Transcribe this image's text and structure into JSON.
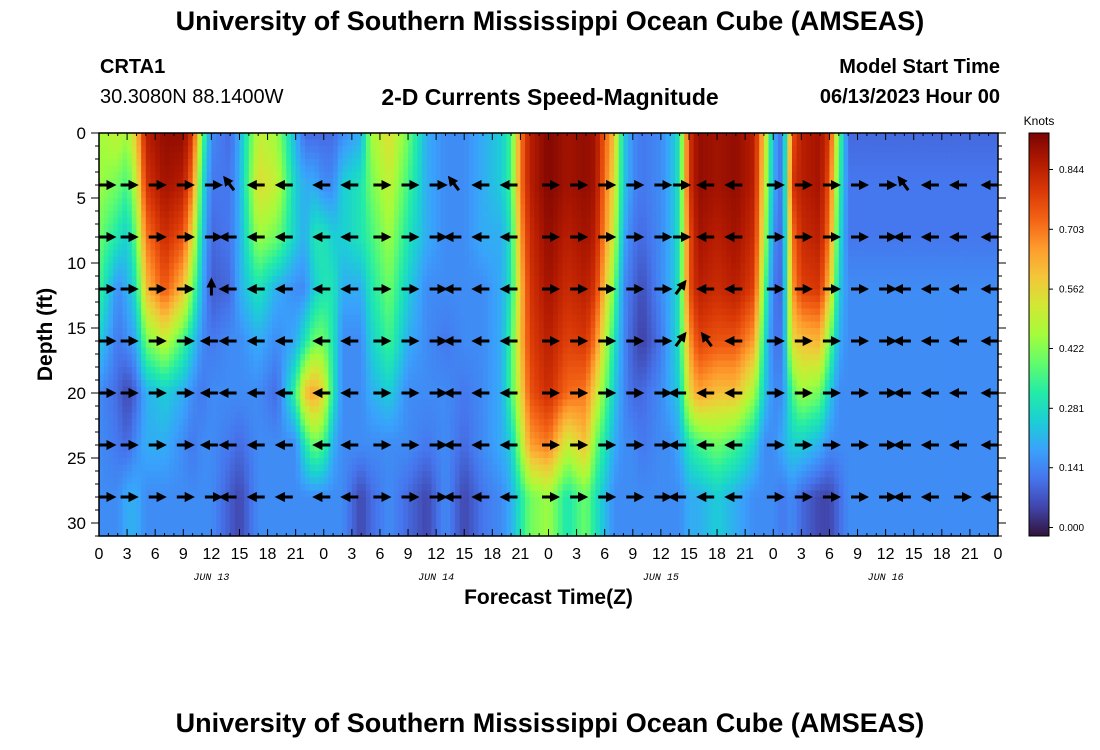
{
  "header": {
    "title": "University of Southern Mississippi Ocean Cube (AMSEAS)",
    "station_id": "CRTA1",
    "coordinates": "30.3080N  88.1400W",
    "chart_title": "2-D Currents Speed-Magnitude",
    "model_start_label": "Model Start Time",
    "model_start_value": "06/13/2023 Hour 00"
  },
  "footer": {
    "title": "University of Southern Mississippi Ocean Cube (AMSEAS)"
  },
  "colors": {
    "colormap": [
      "#30123b",
      "#4145ab",
      "#4675ed",
      "#39a2fc",
      "#1bcfd4",
      "#24eca6",
      "#61fc6c",
      "#a4fc3b",
      "#d1e834",
      "#f3c63a",
      "#fe9b2d",
      "#f36315",
      "#d93806",
      "#b11901",
      "#7a0402"
    ]
  },
  "chart_data": {
    "type": "heatmap",
    "title": "2-D Currents Speed-Magnitude",
    "xlabel": "Forecast Time(Z)",
    "ylabel": "Depth (ft)",
    "colorbar_label": "Knots",
    "xlim": [
      0,
      96
    ],
    "ylim": [
      31,
      0
    ],
    "x_tick_labels": [
      "0",
      "3",
      "6",
      "9",
      "12",
      "15",
      "18",
      "21",
      "0",
      "3",
      "6",
      "9",
      "12",
      "15",
      "18",
      "21",
      "0",
      "3",
      "6",
      "9",
      "12",
      "15",
      "18",
      "21",
      "0",
      "3",
      "6",
      "9",
      "12",
      "15",
      "18",
      "21",
      "0"
    ],
    "y_ticks": [
      0,
      5,
      10,
      15,
      20,
      25,
      30
    ],
    "day_labels": [
      {
        "text": "JUN 13",
        "hour": 12
      },
      {
        "text": "JUN 14",
        "hour": 36
      },
      {
        "text": "JUN 15",
        "hour": 60
      },
      {
        "text": "JUN 16",
        "hour": 84
      }
    ],
    "colorbar_ticks": [
      "0.000",
      "0.141",
      "0.281",
      "0.422",
      "0.562",
      "0.703",
      "0.844"
    ],
    "colorbar_range": [
      -0.02,
      0.93
    ],
    "depths": [
      0,
      4,
      8,
      12,
      16,
      20,
      24,
      28
    ],
    "speed_profiles": [
      {
        "hour": 0,
        "speeds": [
          0.45,
          0.45,
          0.4,
          0.35,
          0.25,
          0.15,
          0.15,
          0.15
        ]
      },
      {
        "hour": 2,
        "speeds": [
          0.5,
          0.4,
          0.3,
          0.15,
          0.12,
          0.1,
          0.12,
          0.15
        ]
      },
      {
        "hour": 3,
        "speeds": [
          0.45,
          0.35,
          0.25,
          0.2,
          0.15,
          0.05,
          0.1,
          0.2
        ]
      },
      {
        "hour": 4,
        "speeds": [
          0.6,
          0.5,
          0.4,
          0.3,
          0.2,
          0.1,
          0.15,
          0.2
        ]
      },
      {
        "hour": 5,
        "speeds": [
          0.85,
          0.8,
          0.7,
          0.6,
          0.4,
          0.2,
          0.2,
          0.15
        ]
      },
      {
        "hour": 7,
        "speeds": [
          0.9,
          0.88,
          0.82,
          0.75,
          0.5,
          0.25,
          0.2,
          0.15
        ]
      },
      {
        "hour": 9,
        "speeds": [
          0.9,
          0.85,
          0.75,
          0.6,
          0.35,
          0.2,
          0.15,
          0.15
        ]
      },
      {
        "hour": 10,
        "speeds": [
          0.8,
          0.7,
          0.55,
          0.4,
          0.25,
          0.15,
          0.12,
          0.15
        ]
      },
      {
        "hour": 11,
        "speeds": [
          0.4,
          0.3,
          0.25,
          0.2,
          0.15,
          0.12,
          0.15,
          0.15
        ]
      },
      {
        "hour": 12,
        "speeds": [
          0.15,
          0.12,
          0.1,
          0.08,
          0.12,
          0.15,
          0.15,
          0.15
        ]
      },
      {
        "hour": 14,
        "speeds": [
          0.1,
          0.12,
          0.12,
          0.1,
          0.15,
          0.15,
          0.12,
          0.08
        ]
      },
      {
        "hour": 15,
        "speeds": [
          0.2,
          0.2,
          0.2,
          0.2,
          0.15,
          0.15,
          0.1,
          0.05
        ]
      },
      {
        "hour": 17,
        "speeds": [
          0.5,
          0.55,
          0.45,
          0.3,
          0.2,
          0.15,
          0.15,
          0.15
        ]
      },
      {
        "hour": 19,
        "speeds": [
          0.45,
          0.5,
          0.4,
          0.2,
          0.15,
          0.1,
          0.15,
          0.15
        ]
      },
      {
        "hour": 21,
        "speeds": [
          0.2,
          0.25,
          0.25,
          0.15,
          0.2,
          0.35,
          0.15,
          0.15
        ]
      },
      {
        "hour": 22,
        "speeds": [
          0.1,
          0.2,
          0.2,
          0.15,
          0.3,
          0.6,
          0.3,
          0.15
        ]
      },
      {
        "hour": 23,
        "speeds": [
          0.1,
          0.2,
          0.3,
          0.25,
          0.4,
          0.65,
          0.4,
          0.15
        ]
      },
      {
        "hour": 24,
        "speeds": [
          0.1,
          0.15,
          0.3,
          0.3,
          0.4,
          0.55,
          0.35,
          0.15
        ]
      },
      {
        "hour": 25,
        "speeds": [
          0.1,
          0.15,
          0.25,
          0.3,
          0.3,
          0.3,
          0.2,
          0.15
        ]
      },
      {
        "hour": 26,
        "speeds": [
          0.15,
          0.25,
          0.25,
          0.2,
          0.15,
          0.15,
          0.15,
          0.15
        ]
      },
      {
        "hour": 28,
        "speeds": [
          0.2,
          0.3,
          0.3,
          0.2,
          0.15,
          0.15,
          0.15,
          0.05
        ]
      },
      {
        "hour": 29,
        "speeds": [
          0.45,
          0.4,
          0.35,
          0.3,
          0.25,
          0.2,
          0.15,
          0.1
        ]
      },
      {
        "hour": 31,
        "speeds": [
          0.55,
          0.5,
          0.45,
          0.4,
          0.35,
          0.25,
          0.15,
          0.15
        ]
      },
      {
        "hour": 33,
        "speeds": [
          0.4,
          0.35,
          0.3,
          0.25,
          0.2,
          0.15,
          0.15,
          0.1
        ]
      },
      {
        "hour": 35,
        "speeds": [
          0.2,
          0.2,
          0.2,
          0.15,
          0.15,
          0.15,
          0.12,
          0.05
        ]
      },
      {
        "hour": 37,
        "speeds": [
          0.15,
          0.15,
          0.15,
          0.15,
          0.12,
          0.15,
          0.15,
          0.15
        ]
      },
      {
        "hour": 39,
        "speeds": [
          0.15,
          0.15,
          0.15,
          0.15,
          0.15,
          0.12,
          0.1,
          0.05
        ]
      },
      {
        "hour": 41,
        "speeds": [
          0.2,
          0.2,
          0.2,
          0.15,
          0.15,
          0.15,
          0.15,
          0.12
        ]
      },
      {
        "hour": 43,
        "speeds": [
          0.25,
          0.25,
          0.2,
          0.2,
          0.2,
          0.2,
          0.2,
          0.15
        ]
      },
      {
        "hour": 44,
        "speeds": [
          0.35,
          0.35,
          0.3,
          0.3,
          0.35,
          0.35,
          0.25,
          0.2
        ]
      },
      {
        "hour": 45,
        "speeds": [
          0.7,
          0.7,
          0.65,
          0.6,
          0.6,
          0.55,
          0.45,
          0.3
        ]
      },
      {
        "hour": 46,
        "speeds": [
          0.85,
          0.85,
          0.82,
          0.8,
          0.78,
          0.75,
          0.65,
          0.4
        ]
      },
      {
        "hour": 48,
        "speeds": [
          0.92,
          0.92,
          0.9,
          0.88,
          0.85,
          0.82,
          0.7,
          0.45
        ]
      },
      {
        "hour": 50,
        "speeds": [
          0.88,
          0.88,
          0.85,
          0.82,
          0.78,
          0.72,
          0.5,
          0.3
        ]
      },
      {
        "hour": 52,
        "speeds": [
          0.9,
          0.9,
          0.88,
          0.85,
          0.8,
          0.7,
          0.6,
          0.4
        ]
      },
      {
        "hour": 53,
        "speeds": [
          0.88,
          0.88,
          0.85,
          0.8,
          0.7,
          0.55,
          0.4,
          0.3
        ]
      },
      {
        "hour": 55,
        "speeds": [
          0.6,
          0.55,
          0.5,
          0.4,
          0.3,
          0.25,
          0.2,
          0.15
        ]
      },
      {
        "hour": 56,
        "speeds": [
          0.25,
          0.25,
          0.2,
          0.15,
          0.15,
          0.15,
          0.15,
          0.15
        ]
      },
      {
        "hour": 57,
        "speeds": [
          0.15,
          0.15,
          0.12,
          0.1,
          0.08,
          0.1,
          0.15,
          0.15
        ]
      },
      {
        "hour": 58,
        "speeds": [
          0.12,
          0.12,
          0.1,
          0.06,
          0.04,
          0.1,
          0.12,
          0.15
        ]
      },
      {
        "hour": 60,
        "speeds": [
          0.15,
          0.15,
          0.15,
          0.15,
          0.12,
          0.15,
          0.15,
          0.15
        ]
      },
      {
        "hour": 61,
        "speeds": [
          0.2,
          0.2,
          0.2,
          0.2,
          0.2,
          0.2,
          0.15,
          0.15
        ]
      },
      {
        "hour": 62,
        "speeds": [
          0.3,
          0.3,
          0.3,
          0.3,
          0.3,
          0.25,
          0.2,
          0.15
        ]
      },
      {
        "hour": 63,
        "speeds": [
          0.8,
          0.8,
          0.75,
          0.75,
          0.65,
          0.55,
          0.3,
          0.2
        ]
      },
      {
        "hour": 64,
        "speeds": [
          0.9,
          0.9,
          0.88,
          0.85,
          0.78,
          0.65,
          0.35,
          0.2
        ]
      },
      {
        "hour": 66,
        "speeds": [
          0.88,
          0.88,
          0.85,
          0.82,
          0.75,
          0.6,
          0.4,
          0.25
        ]
      },
      {
        "hour": 68,
        "speeds": [
          0.9,
          0.9,
          0.88,
          0.85,
          0.75,
          0.6,
          0.35,
          0.2
        ]
      },
      {
        "hour": 70,
        "speeds": [
          0.85,
          0.85,
          0.82,
          0.78,
          0.65,
          0.45,
          0.25,
          0.15
        ]
      },
      {
        "hour": 71,
        "speeds": [
          0.6,
          0.55,
          0.5,
          0.4,
          0.3,
          0.25,
          0.15,
          0.15
        ]
      },
      {
        "hour": 72,
        "speeds": [
          0.2,
          0.2,
          0.15,
          0.12,
          0.12,
          0.15,
          0.15,
          0.15
        ]
      },
      {
        "hour": 73,
        "speeds": [
          0.1,
          0.1,
          0.1,
          0.1,
          0.12,
          0.15,
          0.2,
          0.12
        ]
      },
      {
        "hour": 74,
        "speeds": [
          0.75,
          0.8,
          0.7,
          0.65,
          0.55,
          0.35,
          0.25,
          0.15
        ]
      },
      {
        "hour": 75,
        "speeds": [
          0.85,
          0.85,
          0.82,
          0.78,
          0.6,
          0.45,
          0.25,
          0.1
        ]
      },
      {
        "hour": 77,
        "speeds": [
          0.88,
          0.88,
          0.85,
          0.8,
          0.62,
          0.4,
          0.2,
          0.05
        ]
      },
      {
        "hour": 78,
        "speeds": [
          0.8,
          0.75,
          0.7,
          0.6,
          0.4,
          0.25,
          0.15,
          0.05
        ]
      },
      {
        "hour": 79,
        "speeds": [
          0.4,
          0.35,
          0.3,
          0.25,
          0.2,
          0.15,
          0.15,
          0.1
        ]
      },
      {
        "hour": 80,
        "speeds": [
          0.1,
          0.12,
          0.12,
          0.15,
          0.15,
          0.15,
          0.15,
          0.15
        ]
      },
      {
        "hour": 96,
        "speeds": [
          0.1,
          0.12,
          0.12,
          0.15,
          0.15,
          0.15,
          0.15,
          0.15
        ]
      }
    ],
    "arrow_hours": [
      0,
      3,
      6,
      9,
      12,
      14,
      17,
      20,
      24,
      27,
      30,
      33,
      36,
      38,
      41,
      44,
      48,
      51,
      54,
      57,
      60,
      62,
      65,
      68,
      72,
      75,
      78,
      81,
      84,
      86,
      89,
      92,
      96
    ],
    "arrow_rows": [
      {
        "depth": 4,
        "directions": [
          "E",
          "E",
          "E",
          "E",
          "E",
          "NW",
          "W",
          "W",
          "W",
          "W",
          "E",
          "E",
          "E",
          "NW",
          "W",
          "W",
          "E",
          "E",
          "E",
          "E",
          "E",
          "E",
          "W",
          "W",
          "E",
          "E",
          "E",
          "E",
          "E",
          "NW",
          "W",
          "W",
          "W"
        ]
      },
      {
        "depth": 8,
        "directions": [
          "E",
          "E",
          "E",
          "E",
          "E",
          "W",
          "W",
          "W",
          "W",
          "W",
          "E",
          "E",
          "E",
          "W",
          "W",
          "W",
          "E",
          "E",
          "E",
          "E",
          "E",
          "E",
          "W",
          "W",
          "E",
          "E",
          "E",
          "E",
          "E",
          "W",
          "W",
          "W",
          "W"
        ]
      },
      {
        "depth": 12,
        "directions": [
          "E",
          "E",
          "E",
          "E",
          "N",
          "W",
          "W",
          "W",
          "W",
          "W",
          "E",
          "E",
          "E",
          "W",
          "W",
          "W",
          "E",
          "E",
          "E",
          "E",
          "E",
          "NE",
          "W",
          "W",
          "E",
          "E",
          "E",
          "E",
          "E",
          "W",
          "W",
          "W",
          "W"
        ]
      },
      {
        "depth": 16,
        "directions": [
          "E",
          "E",
          "E",
          "E",
          "W",
          "W",
          "W",
          "W",
          "W",
          "W",
          "E",
          "E",
          "E",
          "W",
          "W",
          "W",
          "E",
          "E",
          "E",
          "E",
          "E",
          "NE",
          "NW",
          "W",
          "E",
          "E",
          "E",
          "E",
          "E",
          "W",
          "W",
          "W",
          "W"
        ]
      },
      {
        "depth": 20,
        "directions": [
          "E",
          "E",
          "E",
          "E",
          "W",
          "W",
          "W",
          "W",
          "W",
          "W",
          "E",
          "E",
          "E",
          "W",
          "W",
          "W",
          "E",
          "E",
          "E",
          "E",
          "E",
          "W",
          "W",
          "W",
          "E",
          "E",
          "E",
          "E",
          "E",
          "W",
          "W",
          "W",
          "W"
        ]
      },
      {
        "depth": 24,
        "directions": [
          "E",
          "E",
          "E",
          "E",
          "W",
          "W",
          "W",
          "W",
          "W",
          "W",
          "E",
          "E",
          "E",
          "W",
          "W",
          "W",
          "E",
          "E",
          "E",
          "E",
          "E",
          "W",
          "W",
          "W",
          "E",
          "E",
          "E",
          "E",
          "E",
          "W",
          "W",
          "W",
          "W"
        ]
      },
      {
        "depth": 28,
        "directions": [
          "E",
          "E",
          "E",
          "E",
          "E",
          "W",
          "W",
          "W",
          "W",
          "W",
          "E",
          "E",
          "E",
          "W",
          "W",
          "W",
          "E",
          "E",
          "E",
          "E",
          "E",
          "W",
          "W",
          "W",
          "E",
          "E",
          "E",
          "E",
          "E",
          "W",
          "W",
          "E",
          "W"
        ]
      }
    ]
  }
}
